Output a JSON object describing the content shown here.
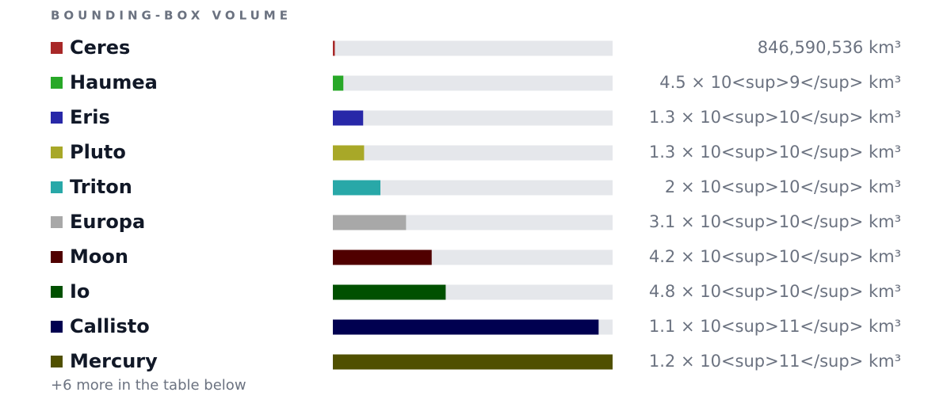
{
  "chart_data": {
    "type": "bar",
    "orientation": "horizontal",
    "title": "BOUNDING-BOX VOLUME",
    "categories": [
      "Ceres",
      "Haumea",
      "Eris",
      "Pluto",
      "Triton",
      "Europa",
      "Moon",
      "Io",
      "Callisto",
      "Mercury"
    ],
    "values": [
      846590536,
      4500000000,
      13000000000,
      13400000000,
      20400000000,
      31400000000,
      42400000000,
      48400000000,
      114000000000,
      120000000000
    ],
    "value_labels": [
      "846,590,536 km³",
      "4.5 × 10<sup>9</sup> km³",
      "1.3 × 10<sup>10</sup> km³",
      "1.3 × 10<sup>10</sup> km³",
      "2 × 10<sup>10</sup> km³",
      "3.1 × 10<sup>10</sup> km³",
      "4.2 × 10<sup>10</sup> km³",
      "4.8 × 10<sup>10</sup> km³",
      "1.1 × 10<sup>11</sup> km³",
      "1.2 × 10<sup>11</sup> km³"
    ],
    "colors": [
      "#a82828",
      "#28a828",
      "#2828a8",
      "#a8a828",
      "#28a8a8",
      "#a8a8a8",
      "#500000",
      "#005000",
      "#000050",
      "#505000"
    ],
    "track_color": "#e5e7eb",
    "xlim": [
      0,
      120000000000
    ],
    "footnote": "+6 more in the table below"
  }
}
